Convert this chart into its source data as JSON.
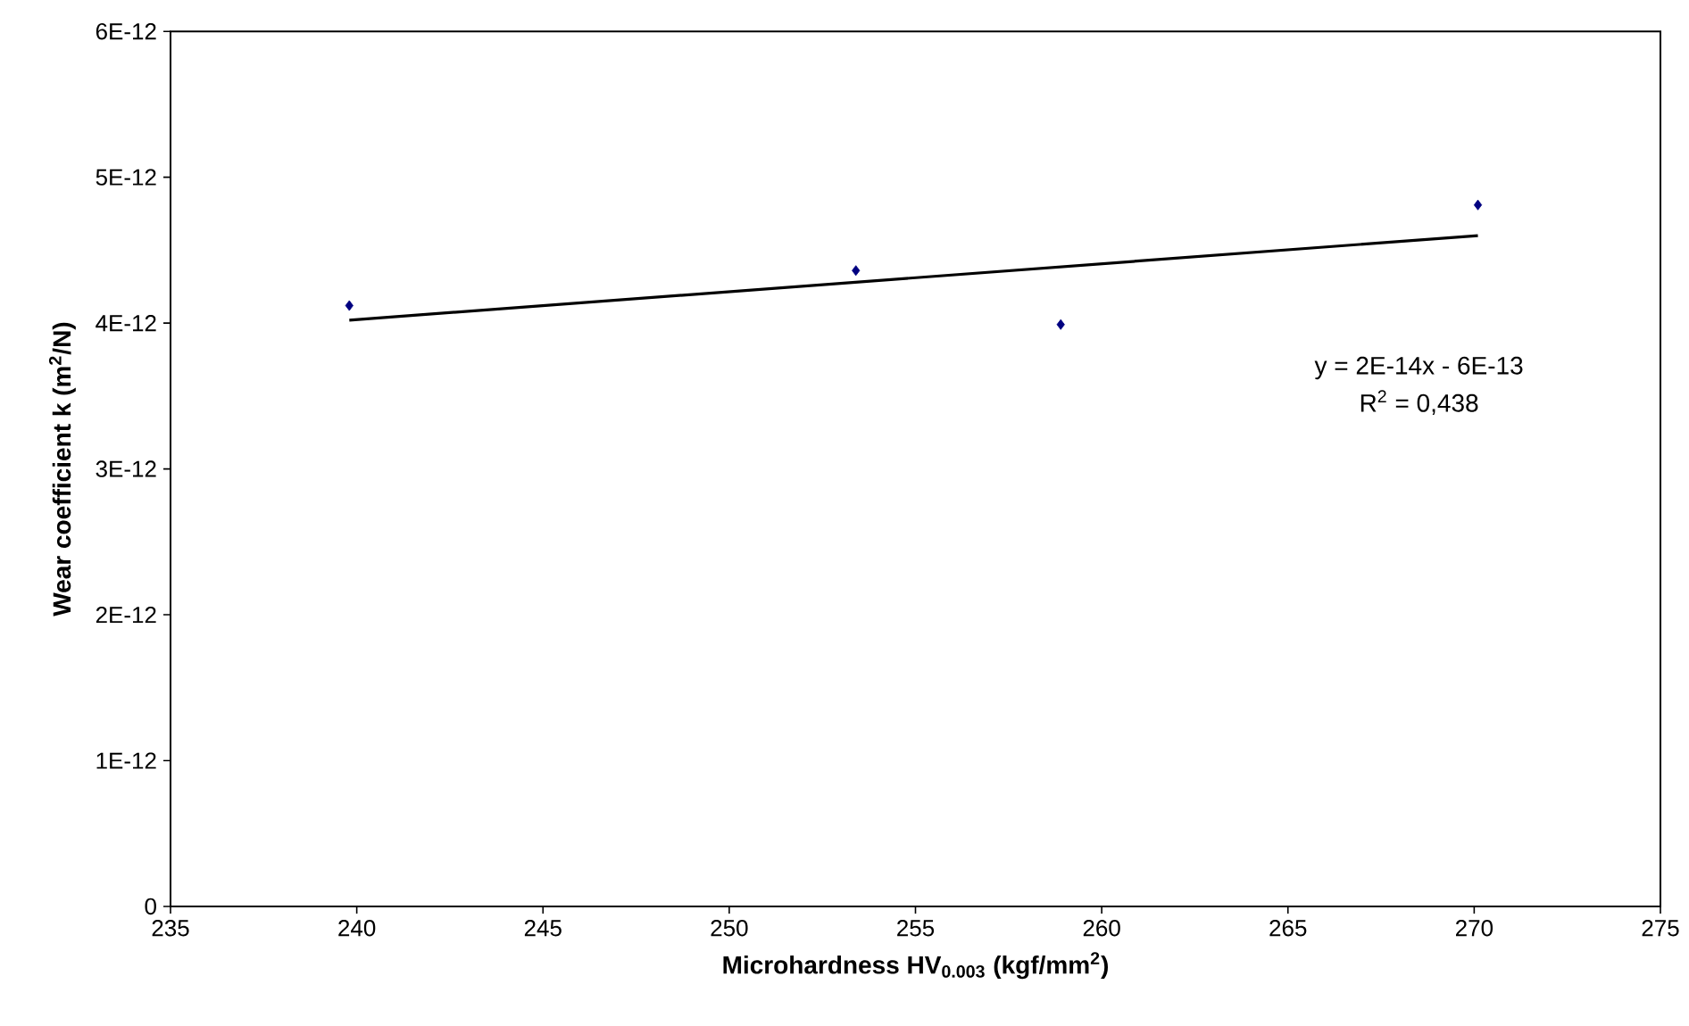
{
  "chart_data": {
    "type": "scatter",
    "xlabel": "Microhardness HV$_{0.003}$ (kgf/mm$^{2}$)",
    "ylabel": "Wear coefficient k (m$^{2}$/N)",
    "x": [
      239.8,
      253.4,
      258.9,
      270.1
    ],
    "series": [
      {
        "color": "#000080",
        "values": [
          4.12e-12,
          4.36e-12,
          3.99e-12,
          4.81e-12
        ],
        "marker": "diamond"
      },
      {
        "type": "line",
        "color": "#000000",
        "x": [
          239.8,
          270.1
        ],
        "values": [
          4.02e-12,
          4.6e-12
        ],
        "marker": "none"
      }
    ],
    "xlim": [
      235,
      275
    ],
    "xticks": [
      235,
      240,
      245,
      250,
      255,
      260,
      265,
      270,
      275
    ],
    "ylim": [
      0,
      6e-12
    ],
    "yticks": [
      {
        "value": 0,
        "label": "0"
      },
      {
        "value": 1e-12,
        "label": "1E-12"
      },
      {
        "value": 2e-12,
        "label": "2E-12"
      },
      {
        "value": 3e-12,
        "label": "3E-12"
      },
      {
        "value": 4e-12,
        "label": "4E-12"
      },
      {
        "value": 5e-12,
        "label": "5E-12"
      },
      {
        "value": 6e-12,
        "label": "6E-12"
      }
    ],
    "annotations": [
      "y = 2E-14x - 6E-13",
      "R$^{2}$ = 0,438"
    ],
    "grid": false,
    "legend": false
  }
}
